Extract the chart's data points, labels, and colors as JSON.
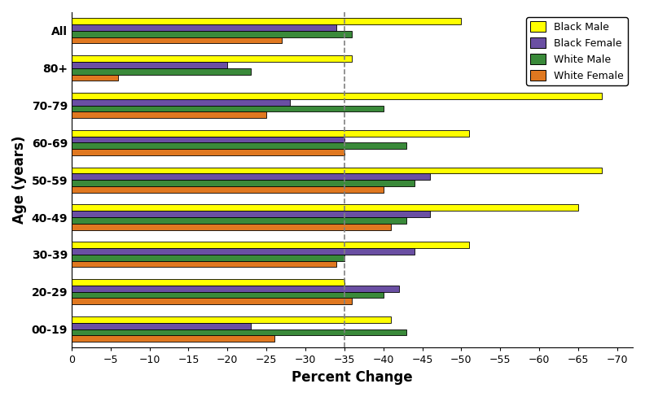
{
  "age_groups": [
    "00-19",
    "20-29",
    "30-39",
    "40-49",
    "50-59",
    "60-69",
    "70-79",
    "80+",
    "All"
  ],
  "series": {
    "Black Male": [
      -41,
      -35,
      -51,
      -65,
      -68,
      -51,
      -68,
      -36,
      -50
    ],
    "Black Female": [
      -23,
      -42,
      -44,
      -46,
      -46,
      -35,
      -28,
      -20,
      -34
    ],
    "White Male": [
      -43,
      -40,
      -35,
      -43,
      -44,
      -43,
      -40,
      -23,
      -36
    ],
    "White Female": [
      -26,
      -36,
      -34,
      -41,
      -40,
      -35,
      -25,
      -6,
      -27
    ]
  },
  "colors": {
    "Black Male": "#FFFF00",
    "Black Female": "#6A4FA3",
    "White Male": "#3A8A3A",
    "White Female": "#E07820"
  },
  "bar_order": [
    "Black Male",
    "Black Female",
    "White Male",
    "White Female"
  ],
  "xlabel": "Percent Change",
  "ylabel": "Age (years)",
  "dashed_line_x": -35,
  "figsize": [
    7.92,
    4.88
  ],
  "dpi": 100
}
